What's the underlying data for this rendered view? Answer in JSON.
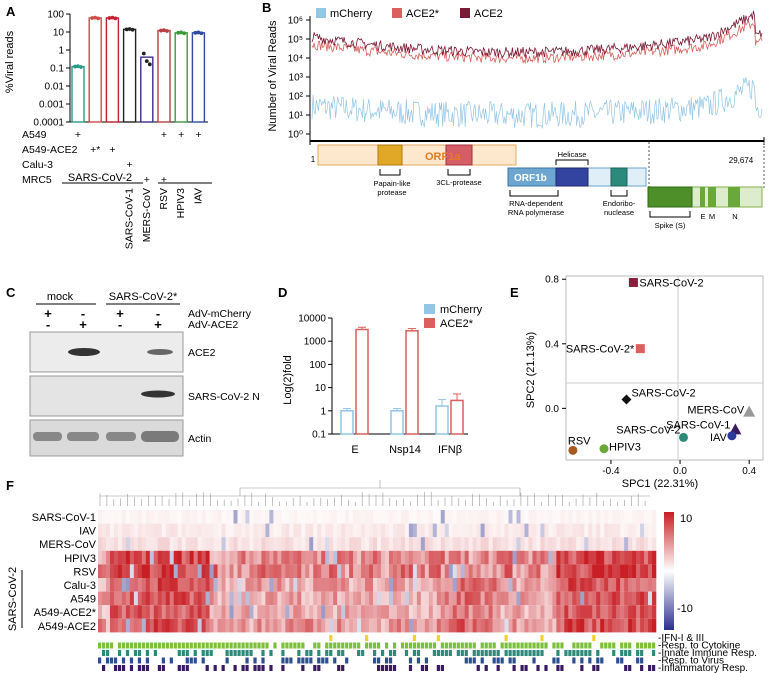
{
  "panel_labels": {
    "a": "A",
    "b": "B",
    "c": "C",
    "d": "D",
    "e": "E",
    "f": "F"
  },
  "colors": {
    "mcherry": "#93c6e6",
    "ace2star": "#d9605c",
    "ace2": "#7a1a34",
    "red": "#c81e24",
    "blue": "#2b2f8e",
    "green": "#7cbf3a",
    "teal": "#2d8a78",
    "navy": "#2c4f8f",
    "purple": "#3b1a63",
    "orange": "#f4d22a"
  },
  "chart_data": [
    {
      "id": "A",
      "type": "bar",
      "scale": "log",
      "ylabel": "%Viral reads",
      "yticks": [
        "0.0001",
        "0.001",
        "0.01",
        "0.1",
        "1",
        "10",
        "100"
      ],
      "ylim": [
        0.0001,
        100
      ],
      "values": [
        0.12,
        60,
        60,
        14,
        0.4,
        12,
        9,
        9
      ],
      "bar_colors": [
        "#2a9a86",
        "#d04a4a",
        "#c0202c",
        "#222222",
        "#3a2e8c",
        "#b84040",
        "#3a9a3a",
        "#2f4aa0"
      ],
      "row_labels": [
        "A549",
        "A549-ACE2",
        "Calu-3",
        "MRC5"
      ],
      "marks": [
        [
          "+",
          "",
          "",
          "",
          "",
          "+",
          "+",
          "+"
        ],
        [
          "",
          "+*",
          "+",
          "",
          "",
          "",
          "",
          ""
        ],
        [
          "",
          "",
          "",
          "+",
          "",
          "",
          "",
          ""
        ],
        [
          "",
          "",
          "",
          "",
          "+",
          "+",
          "",
          ""
        ]
      ],
      "group_label": "SARS-CoV-2",
      "virus_labels": [
        "SARS-CoV-1",
        "MERS-CoV",
        "RSV",
        "HPIV3",
        "IAV"
      ]
    },
    {
      "id": "B",
      "type": "line",
      "scale": "log",
      "ylabel": "Number of Viral Reads",
      "yticks": [
        "10⁰",
        "10¹",
        "10²",
        "10³",
        "10⁴",
        "10⁵",
        "10⁶"
      ],
      "ylim": [
        1,
        1000000
      ],
      "series": [
        {
          "name": "mCherry"
        },
        {
          "name": "ACE2*"
        },
        {
          "name": "ACE2"
        }
      ],
      "x_start": "1",
      "x_end": "29,674",
      "genome": {
        "orf1a": "ORF1a",
        "plp": "Papain-like protease",
        "clp": "3CL-protease",
        "orf1b": "ORF1b",
        "rdrp": "RNA-dependent RNA polymerase",
        "helicase": "Helicase",
        "endo": "Endoribo- nuclease",
        "spike": "Spike (S)",
        "e": "E",
        "m": "M",
        "n": "N"
      }
    },
    {
      "id": "C",
      "type": "table",
      "conditions": [
        "mock",
        "SARS-CoV-2*"
      ],
      "rows": [
        {
          "label": "AdV-mCherry",
          "marks": [
            "+",
            "-",
            "+",
            "-"
          ]
        },
        {
          "label": "AdV-ACE2",
          "marks": [
            "-",
            "+",
            "-",
            "+"
          ]
        }
      ],
      "blots": [
        "ACE2",
        "SARS-CoV-2 N",
        "Actin"
      ]
    },
    {
      "id": "D",
      "type": "bar",
      "scale": "log",
      "ylabel": "Log(2)fold",
      "yticks": [
        "0.1",
        "1",
        "10",
        "100",
        "1000",
        "10000"
      ],
      "ylim": [
        0.1,
        10000
      ],
      "categories": [
        "E",
        "Nsp14",
        "IFNβ"
      ],
      "series": [
        {
          "name": "mCherry",
          "values": [
            1,
            1,
            1.6
          ]
        },
        {
          "name": "ACE2*",
          "values": [
            3200,
            2800,
            2.8
          ]
        }
      ]
    },
    {
      "id": "E",
      "type": "scatter",
      "xlabel": "SPC1 (22.31%)",
      "ylabel": "SPC2 (21.13%)",
      "xlim": [
        -0.66,
        0.48
      ],
      "ylim": [
        -0.32,
        0.82
      ],
      "xticks": [
        "-0.4",
        "0.0",
        "0.4"
      ],
      "yticks": [
        "0.0",
        "0.4",
        "0.8"
      ],
      "points": [
        {
          "label": "SARS-CoV-2",
          "x": -0.27,
          "y": 0.78
        },
        {
          "label": "SARS-CoV-2*",
          "x": -0.23,
          "y": 0.37
        },
        {
          "label": "SARS-CoV-2",
          "x": -0.31,
          "y": 0.055
        },
        {
          "label": "MERS-CoV",
          "x": 0.4,
          "y": -0.02
        },
        {
          "label": "SARS-CoV-1",
          "x": 0.32,
          "y": -0.13
        },
        {
          "label": "IAV",
          "x": 0.3,
          "y": -0.17
        },
        {
          "label": "SARS-CoV-2",
          "x": 0.02,
          "y": -0.18
        },
        {
          "label": "RSV",
          "x": -0.62,
          "y": -0.26
        },
        {
          "label": "HPIV3",
          "x": -0.44,
          "y": -0.25
        }
      ]
    },
    {
      "id": "F",
      "type": "heatmap",
      "rows": [
        "SARS-CoV-1",
        "IAV",
        "MERS-CoV",
        "HPIV3",
        "RSV",
        "Calu-3",
        "A549",
        "A549-ACE2*",
        "A549-ACE2"
      ],
      "group_label": "SARS-CoV-2",
      "colorbar": {
        "max": "10",
        "min": "-10"
      },
      "annotations": [
        "IFN-I & III",
        "Resp. to Cytokine",
        "Innate Immune Resp.",
        "Resp. to Virus",
        "Inflammatory Resp."
      ]
    }
  ]
}
